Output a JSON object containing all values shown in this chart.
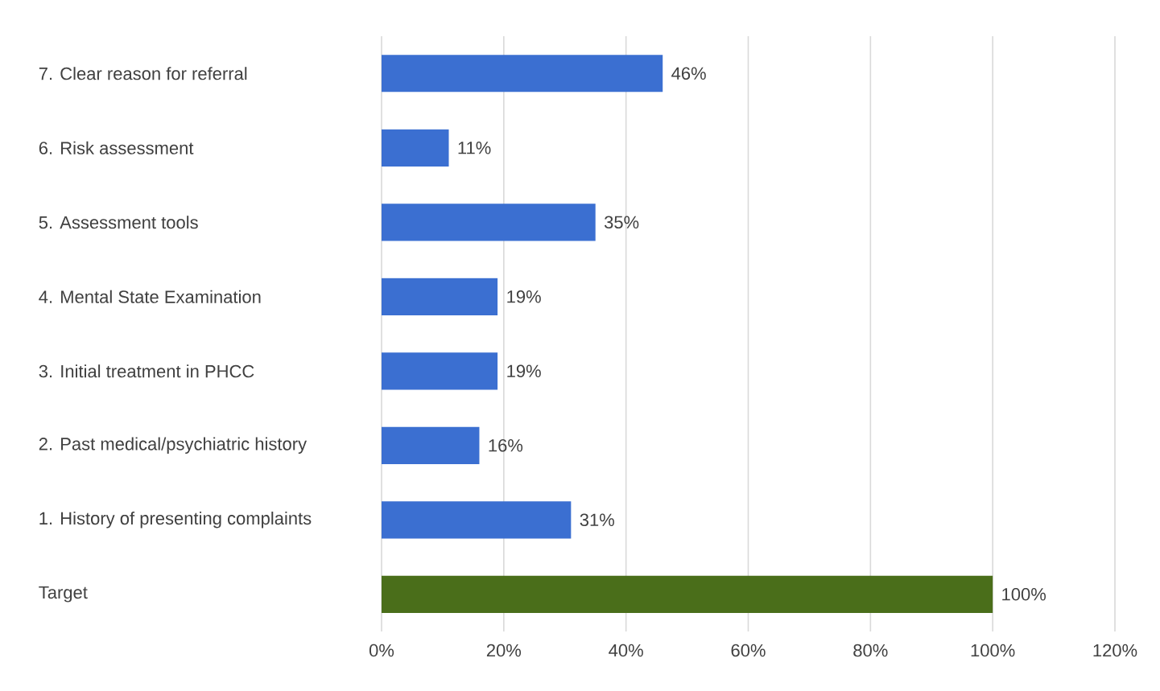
{
  "chart_data": {
    "type": "bar",
    "orientation": "horizontal",
    "categories": [
      "7. Clear reason for referral",
      "6. Risk assessment",
      "5. Assessment tools",
      "4. Mental State Examination",
      "3. Initial treatment in PHCC",
      "2. Past medical/psychiatric history",
      "1. History of presenting complaints",
      "Target"
    ],
    "values": [
      46,
      11,
      35,
      19,
      19,
      16,
      31,
      100
    ],
    "colors": [
      "#3b6fd1",
      "#3b6fd1",
      "#3b6fd1",
      "#3b6fd1",
      "#3b6fd1",
      "#3b6fd1",
      "#3b6fd1",
      "#4a6e1a"
    ],
    "value_labels": [
      "46%",
      "11%",
      "35%",
      "19%",
      "19%",
      "16%",
      "31%",
      "100%"
    ],
    "xlim": [
      0,
      120
    ],
    "xticks": [
      {
        "value": 0,
        "label": "0%"
      },
      {
        "value": 20,
        "label": "20%"
      },
      {
        "value": 40,
        "label": "40%"
      },
      {
        "value": 60,
        "label": "60%"
      },
      {
        "value": 80,
        "label": "80%"
      },
      {
        "value": 100,
        "label": "100%"
      },
      {
        "value": 120,
        "label": "120%"
      }
    ],
    "grid": "x"
  }
}
